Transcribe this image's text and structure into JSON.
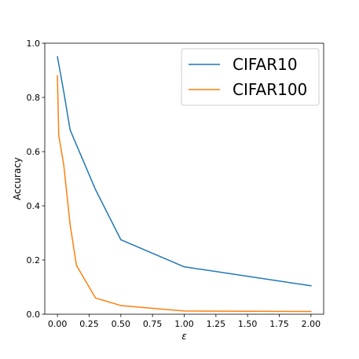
{
  "chart_data": {
    "type": "line",
    "title": "",
    "xlabel": "ε",
    "ylabel": "Accuracy",
    "xlim": [
      -0.1,
      2.1
    ],
    "ylim": [
      0.0,
      1.0
    ],
    "xticks": [
      0.0,
      0.25,
      0.5,
      0.75,
      1.0,
      1.25,
      1.5,
      1.75,
      2.0
    ],
    "xtick_labels": [
      "0.00",
      "0.25",
      "0.50",
      "0.75",
      "1.00",
      "1.25",
      "1.50",
      "1.75",
      "2.00"
    ],
    "yticks": [
      0.0,
      0.2,
      0.4,
      0.6,
      0.8,
      1.0
    ],
    "ytick_labels": [
      "0.0",
      "0.2",
      "0.4",
      "0.6",
      "0.8",
      "1.0"
    ],
    "grid": false,
    "legend_position": "top-right",
    "series": [
      {
        "name": "CIFAR10",
        "color": "#1f77b4",
        "x": [
          0.0,
          0.05,
          0.1,
          0.3,
          0.5,
          1.0,
          2.0
        ],
        "y": [
          0.95,
          0.82,
          0.68,
          0.46,
          0.275,
          0.175,
          0.105
        ]
      },
      {
        "name": "CIFAR100",
        "color": "#ff7f0e",
        "x": [
          0.0,
          0.01,
          0.05,
          0.1,
          0.15,
          0.3,
          0.5,
          1.0,
          2.0
        ],
        "y": [
          0.88,
          0.66,
          0.55,
          0.33,
          0.18,
          0.06,
          0.032,
          0.012,
          0.01
        ]
      }
    ]
  }
}
